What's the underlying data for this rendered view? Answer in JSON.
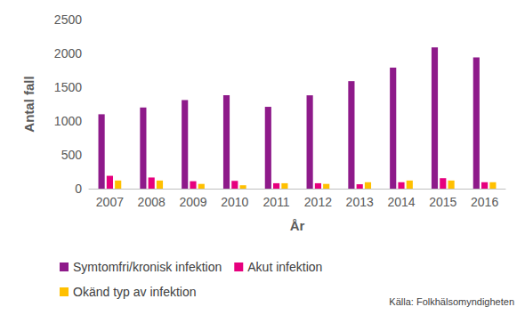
{
  "chart_data": {
    "type": "bar",
    "x_label": "År",
    "y_label": "Antal fall",
    "categories": [
      "2007",
      "2008",
      "2009",
      "2010",
      "2011",
      "2012",
      "2013",
      "2014",
      "2015",
      "2016"
    ],
    "series": [
      {
        "name": "Symtomfri/kronisk infektion",
        "color": "#8e1a8a",
        "values": [
          1100,
          1200,
          1310,
          1380,
          1210,
          1380,
          1590,
          1790,
          2090,
          1940
        ]
      },
      {
        "name": "Akut infektion",
        "color": "#e6007e",
        "values": [
          190,
          165,
          110,
          115,
          80,
          80,
          65,
          95,
          155,
          95
        ]
      },
      {
        "name": "Okänd typ av infektion",
        "color": "#ffc000",
        "values": [
          120,
          120,
          70,
          50,
          80,
          70,
          95,
          120,
          120,
          95
        ]
      }
    ],
    "ylim": [
      0,
      2500
    ],
    "yticks": [
      0,
      500,
      1000,
      1500,
      2000,
      2500
    ],
    "grid": false,
    "legend": "bottom",
    "annotations": [
      "Källa: Folkhälsomyndigheten"
    ]
  }
}
